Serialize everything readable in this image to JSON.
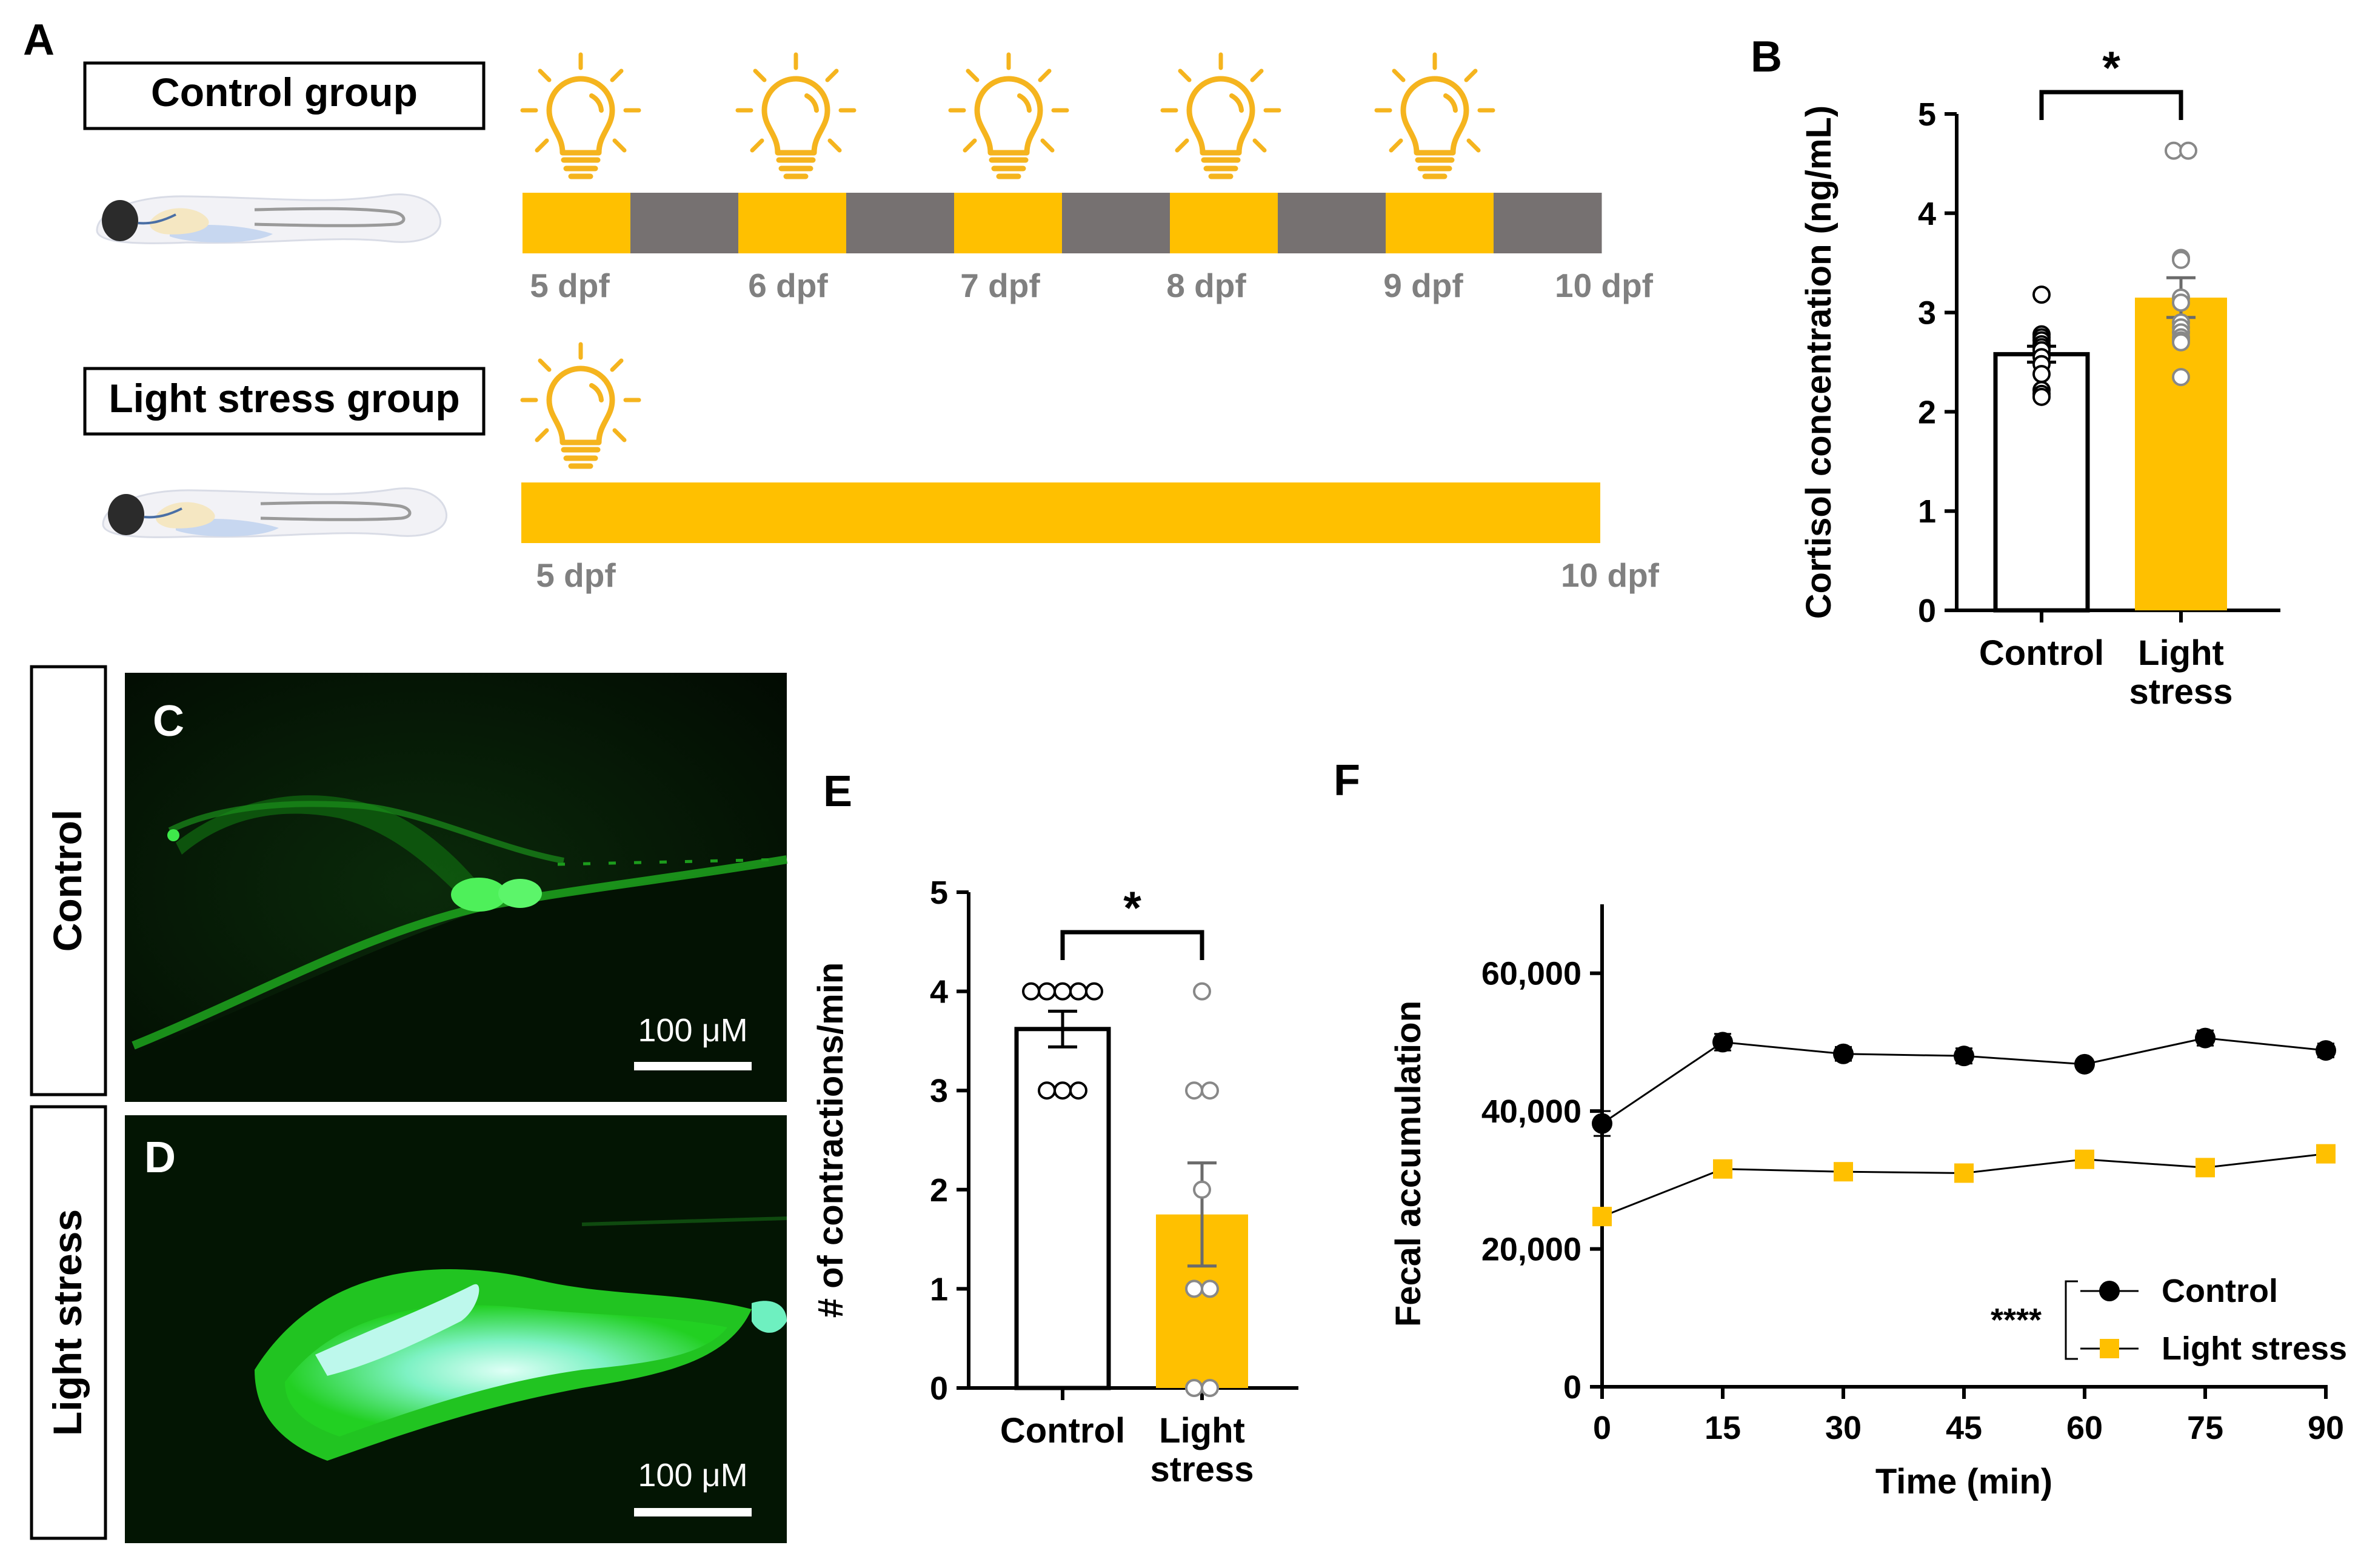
{
  "panel_labels": {
    "a": "A",
    "b": "B",
    "c": "C",
    "d": "D",
    "e": "E",
    "f": "F"
  },
  "colors": {
    "yellow": "#FFC000",
    "bulb": "#F5B41E",
    "dark": "#767171",
    "black": "#000000",
    "grey_text": "#808080",
    "green": "#27D827"
  },
  "panel_a": {
    "control_title": "Control group",
    "stress_title": "Light stress group",
    "control_schedule": [
      "light",
      "dark",
      "light",
      "dark",
      "light",
      "dark",
      "light",
      "dark",
      "light",
      "dark"
    ],
    "control_day_labels": [
      "5 dpf",
      "6 dpf",
      "7 dpf",
      "8 dpf",
      "9 dpf",
      "10 dpf"
    ],
    "stress_schedule": [
      "light"
    ],
    "stress_day_labels": [
      "5 dpf",
      "10 dpf"
    ],
    "icon": "lightbulb-icon"
  },
  "micrographs": {
    "control_label": "Control",
    "stress_label": "Light stress",
    "scale_bar_text": "100 μM"
  },
  "chart_data": [
    {
      "panel": "B",
      "type": "bar",
      "categories": [
        "Control",
        "Light stress"
      ],
      "category_lines": [
        [
          "Control"
        ],
        [
          "Light",
          "stress"
        ]
      ],
      "values": [
        2.58,
        3.15
      ],
      "sem": [
        0.08,
        0.2
      ],
      "points": [
        [
          3.18,
          2.78,
          2.75,
          2.72,
          2.68,
          2.65,
          2.62,
          2.55,
          2.48,
          2.38,
          2.22,
          2.18,
          2.15
        ],
        [
          4.63,
          4.63,
          3.55,
          3.53,
          3.15,
          3.1,
          2.9,
          2.85,
          2.8,
          2.75,
          2.72,
          2.7,
          2.35
        ]
      ],
      "ylabel": "Cortisol concentration (ng/mL)",
      "ylim": [
        0,
        5
      ],
      "yticks": [
        "0",
        "1",
        "2",
        "3",
        "4",
        "5"
      ],
      "significance": "*"
    },
    {
      "panel": "E",
      "type": "bar",
      "categories": [
        "Control",
        "Light stress"
      ],
      "category_lines": [
        [
          "Control"
        ],
        [
          "Light",
          "stress"
        ]
      ],
      "values": [
        3.62,
        1.75
      ],
      "sem": [
        0.18,
        0.52
      ],
      "points": [
        [
          4,
          4,
          4,
          4,
          4,
          3,
          3,
          3
        ],
        [
          4,
          3,
          3,
          2,
          1,
          1,
          0,
          0
        ]
      ],
      "ylabel": "# of contractions/min",
      "ylim": [
        0,
        5
      ],
      "yticks": [
        "0",
        "1",
        "2",
        "3",
        "4",
        "5"
      ],
      "significance": "*"
    },
    {
      "panel": "F",
      "type": "line",
      "x": [
        0,
        15,
        30,
        45,
        60,
        75,
        90
      ],
      "xticks": [
        "0",
        "15",
        "30",
        "45",
        "60",
        "75",
        "90"
      ],
      "series": [
        {
          "name": "Control",
          "marker": "circle",
          "values": [
            38200,
            50000,
            48300,
            48000,
            46800,
            50600,
            48800
          ],
          "err": [
            1800,
            1200,
            1000,
            1100,
            700,
            1100,
            1000
          ]
        },
        {
          "name": "Light stress",
          "marker": "square",
          "values": [
            24700,
            31600,
            31200,
            31000,
            33000,
            31800,
            33800
          ],
          "err": [
            500,
            400,
            400,
            400,
            400,
            400,
            500
          ]
        }
      ],
      "xlabel": "Time (min)",
      "ylabel": "Fecal accumulation",
      "xlim": [
        0,
        90
      ],
      "ylim": [
        0,
        70000
      ],
      "yticks": [
        "0",
        "20,000",
        "40,000",
        "60,000"
      ],
      "significance": "****",
      "legend_position": "bottom-right"
    }
  ]
}
